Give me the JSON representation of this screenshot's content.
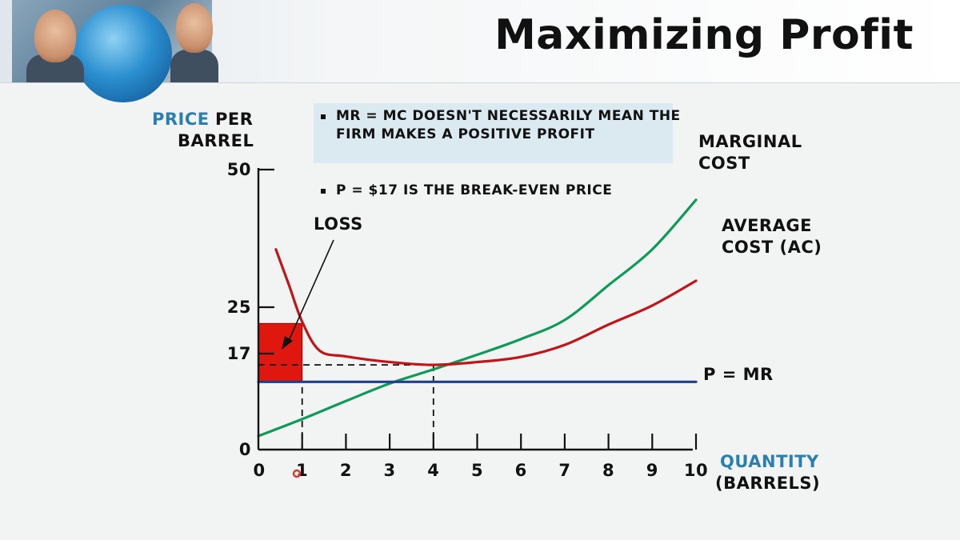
{
  "header": {
    "title": "Maximizing Profit"
  },
  "notes": [
    "MR = MC DOESN'T NECESSARILY MEAN THE FIRM MAKES A POSITIVE PROFIT",
    "P = $17 IS THE BREAK-EVEN PRICE"
  ],
  "chart_data": {
    "type": "line",
    "ylabel_highlight": "PRICE",
    "ylabel_rest": "PER",
    "ylabel_line2": "BARREL",
    "xlabel_line1": "QUANTITY",
    "xlabel_line2": "(BARRELS)",
    "xlim": [
      0,
      10
    ],
    "ylim": [
      0,
      50
    ],
    "x_ticks": [
      0,
      1,
      2,
      3,
      4,
      5,
      6,
      7,
      8,
      9,
      10
    ],
    "x_tick_labels": [
      "0",
      "1",
      "2",
      "3",
      "4",
      "5",
      "6",
      "7",
      "8",
      "9",
      "10"
    ],
    "y_ticks": [
      0,
      17,
      25,
      50
    ],
    "y_tick_labels": [
      "0",
      "17",
      "25",
      "50"
    ],
    "series": [
      {
        "name": "MARGINAL COST",
        "color": "#0f9a5a",
        "x": [
          0,
          1,
          2,
          3,
          4,
          5,
          6,
          7,
          8,
          9,
          10
        ],
        "y": [
          2.4,
          5.4,
          8.6,
          11.7,
          14.2,
          16.8,
          19.5,
          22.8,
          29.0,
          35.5,
          44.5
        ]
      },
      {
        "name": "AVERAGE COST (AC)",
        "color": "#c0161a",
        "x": [
          0.4,
          0.7,
          1,
          1.4,
          2,
          3,
          4,
          5,
          6,
          7,
          8,
          9,
          10
        ],
        "y": [
          35.5,
          29.0,
          22.5,
          17.5,
          16.5,
          15.5,
          15.0,
          15.5,
          16.4,
          18.5,
          22.0,
          25.3,
          29.8
        ]
      },
      {
        "name": "P = MR",
        "color": "#1e3f8a",
        "x": [
          0,
          10
        ],
        "y": [
          12.0,
          12.0
        ]
      }
    ],
    "loss_region": {
      "x": [
        0,
        1
      ],
      "y": [
        12.0,
        22.2
      ],
      "color": "#e0170e"
    },
    "guides": [
      {
        "x": 1,
        "from_y": 0,
        "to_y": 12
      },
      {
        "x": 4,
        "from_y": 0,
        "to_y": 15
      },
      {
        "y": 15,
        "from_x": 0,
        "to_x": 4
      }
    ],
    "annotations": {
      "loss": "LOSS",
      "mc_line1": "MARGINAL",
      "mc_line2": "COST",
      "ac_line1": "AVERAGE",
      "ac_line2": "COST (AC)",
      "pmr": "P = MR"
    }
  }
}
